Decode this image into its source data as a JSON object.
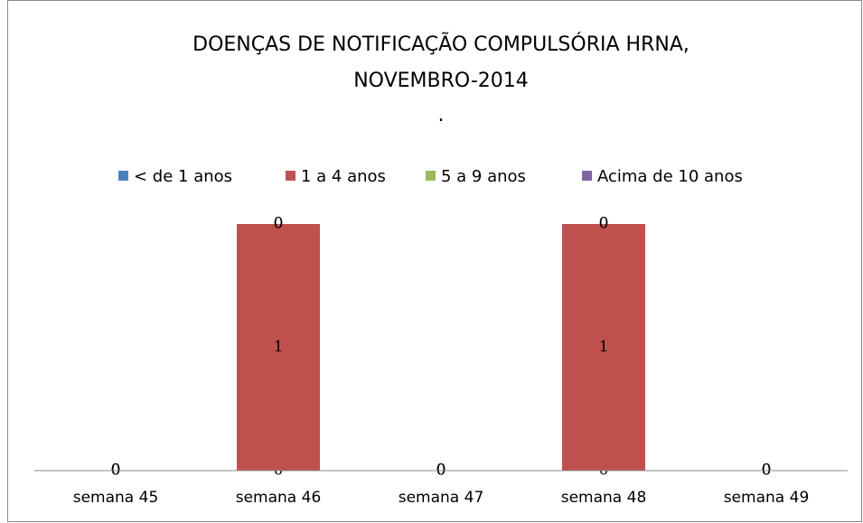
{
  "chart_data": {
    "type": "stacked-bar",
    "title": [
      "DOENÇAS DE NOTIFICAÇÃO COMPULSÓRIA HRNA,",
      "NOVEMBRO-2014",
      "."
    ],
    "categories": [
      "semana 45",
      "semana 46",
      "semana 47",
      "semana 48",
      "semana 49"
    ],
    "series": [
      {
        "name": "< de 1 anos",
        "color": "#4f81bd",
        "values": [
          0,
          0,
          0,
          0,
          0
        ]
      },
      {
        "name": "1 a 4 anos",
        "color": "#c0504d",
        "values": [
          0,
          1,
          0,
          1,
          0
        ]
      },
      {
        "name": "5 a 9 anos",
        "color": "#9bbb59",
        "values": [
          0,
          0,
          0,
          0,
          0
        ]
      },
      {
        "name": "Acima de 10 anos",
        "color": "#8064a2",
        "values": [
          0,
          0,
          0,
          0,
          0
        ]
      }
    ],
    "ylim": [
      0,
      1
    ],
    "legend": "top"
  }
}
